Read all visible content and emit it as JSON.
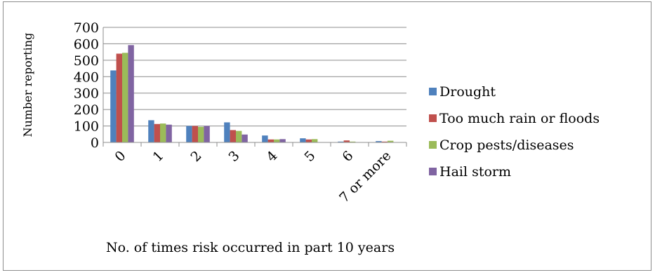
{
  "chart_data": {
    "type": "bar",
    "title": "",
    "xlabel": "No. of times risk occurred in part 10 years",
    "ylabel": "Number reporting",
    "ylim": [
      0,
      700
    ],
    "yticks": [
      0,
      100,
      200,
      300,
      400,
      500,
      600,
      700
    ],
    "categories": [
      "0",
      "1",
      "2",
      "3",
      "4",
      "5",
      "6",
      "7 or more"
    ],
    "series": [
      {
        "name": "Drought",
        "color": "#4f81bd",
        "values": [
          438,
          135,
          100,
          122,
          42,
          25,
          5,
          8
        ]
      },
      {
        "name": "Too much rain or floods",
        "color": "#c0504d",
        "values": [
          540,
          112,
          100,
          75,
          18,
          18,
          12,
          5
        ]
      },
      {
        "name": "Crop pests/diseases",
        "color": "#9bbb59",
        "values": [
          545,
          115,
          95,
          70,
          18,
          20,
          5,
          10
        ]
      },
      {
        "name": "Hail storm",
        "color": "#8064a2",
        "values": [
          592,
          108,
          100,
          48,
          20,
          0,
          0,
          0
        ]
      }
    ],
    "grid": true,
    "legend_position": "right"
  }
}
